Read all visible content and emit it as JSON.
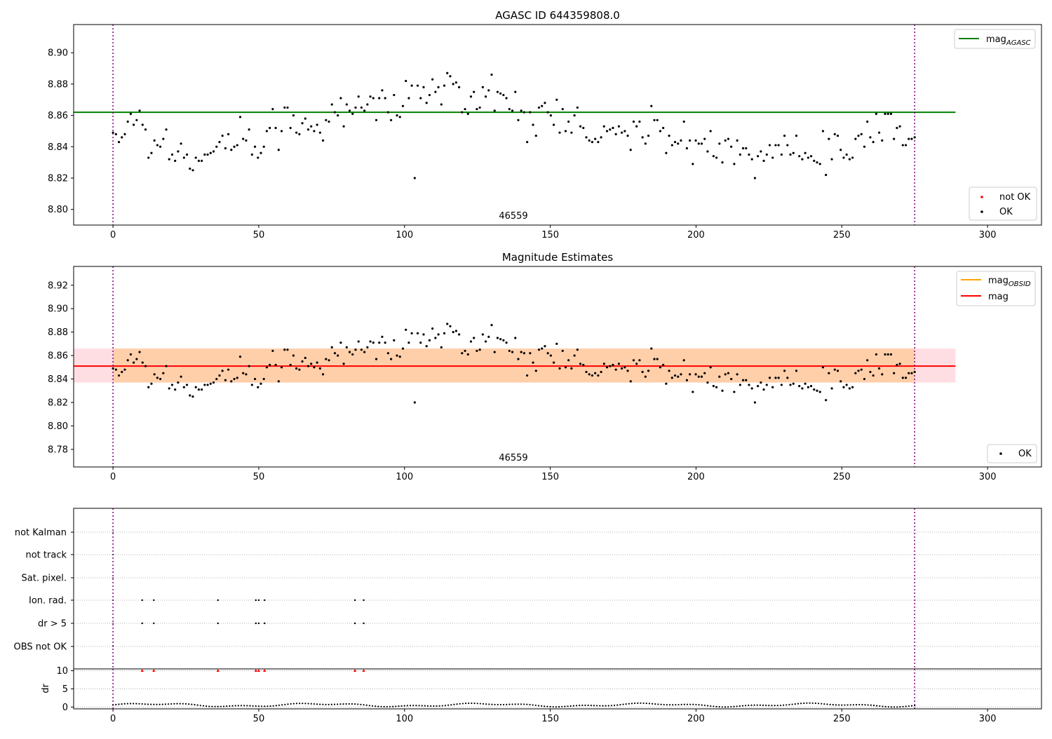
{
  "figure": {
    "title": "AGASC ID 644359808.0",
    "obsid_label": "46559"
  },
  "chart_data": [
    {
      "type": "scatter",
      "title": "AGASC ID 644359808.0",
      "xlabel": "",
      "ylabel": "",
      "xlim": [
        -13.5,
        318.5
      ],
      "ylim": [
        8.79,
        8.918
      ],
      "xticks": [
        "0",
        "50",
        "100",
        "150",
        "200",
        "250",
        "300"
      ],
      "yticks": [
        "8.80",
        "8.82",
        "8.84",
        "8.86",
        "8.88",
        "8.90"
      ],
      "hlines": [
        {
          "name": "mag_AGASC",
          "y": 8.862,
          "xmin": -13.5,
          "xmax": 289,
          "color": "#008000"
        }
      ],
      "vlines": [
        0,
        275
      ],
      "annotation": {
        "text": "46559",
        "x": 137,
        "y": 8.795
      },
      "legend_lines": [
        {
          "name": "mag",
          "sub": "AGASC",
          "color": "#008000"
        }
      ],
      "legend_points": [
        {
          "name": "not OK",
          "color": "#ff0000"
        },
        {
          "name": "OK",
          "color": "#000000"
        }
      ],
      "grid": false,
      "legend_placement": "top-right and bottom-right"
    },
    {
      "type": "scatter",
      "title": "Magnitude Estimates",
      "xlabel": "",
      "ylabel": "",
      "xlim": [
        -13.5,
        318.5
      ],
      "ylim": [
        8.765,
        8.936
      ],
      "xticks": [
        "0",
        "50",
        "100",
        "150",
        "200",
        "250",
        "300"
      ],
      "yticks": [
        "8.78",
        "8.80",
        "8.82",
        "8.84",
        "8.86",
        "8.88",
        "8.90",
        "8.92"
      ],
      "hlines": [
        {
          "name": "mag",
          "y": 8.851,
          "xmin": -13.5,
          "xmax": 289,
          "color": "#ff0000"
        }
      ],
      "bands": [
        {
          "name": "mag_OBSID range",
          "y1": 8.837,
          "y2": 8.866,
          "xmin": 0,
          "xmax": 275,
          "color": "#ffa500",
          "opacity": 0.25
        },
        {
          "name": "mag range",
          "y1": 8.837,
          "y2": 8.866,
          "xmin": -13.5,
          "xmax": 289,
          "color": "#ffb6c1",
          "opacity": 0.45
        }
      ],
      "vlines": [
        0,
        275
      ],
      "annotation": {
        "text": "46559",
        "x": 137,
        "y": 8.768
      },
      "legend_lines": [
        {
          "name": "mag",
          "sub": "OBSID",
          "color": "#ffa500"
        },
        {
          "name": "mag",
          "sub": "",
          "color": "#ff0000"
        }
      ],
      "legend_points": [
        {
          "name": "OK",
          "color": "#000000"
        }
      ],
      "grid": false,
      "legend_placement": "top-right and bottom-right"
    },
    {
      "type": "scatter",
      "title": "",
      "xlabel": "",
      "ylabel": "",
      "xlim": [
        -13.5,
        318.5
      ],
      "categories": [
        "OBS not OK",
        "dr > 5",
        "Ion. rad.",
        "Sat. pixel.",
        "not track",
        "not Kalman"
      ],
      "flag_points": [
        {
          "category": "Ion. rad.",
          "x": [
            10,
            14,
            36,
            49,
            50,
            52,
            83,
            86
          ]
        },
        {
          "category": "dr > 5",
          "x": [
            10,
            14,
            36,
            49,
            50,
            52,
            83,
            86
          ]
        }
      ],
      "vlines": [
        0,
        275
      ],
      "grid": true
    },
    {
      "type": "scatter",
      "title": "",
      "xlabel": "",
      "ylabel": "dr",
      "xlim": [
        -13.5,
        318.5
      ],
      "ylim": [
        -0.5,
        10.5
      ],
      "xticks": [
        "0",
        "50",
        "100",
        "150",
        "200",
        "250",
        "300"
      ],
      "yticks": [
        "0",
        "5",
        "10"
      ],
      "clipped_points": {
        "y": 10,
        "x": [
          10,
          14,
          36,
          49,
          50,
          52,
          83,
          86
        ],
        "color": "#ff0000",
        "marker": "triangle"
      },
      "vlines": [
        0,
        275
      ],
      "grid": true
    }
  ]
}
